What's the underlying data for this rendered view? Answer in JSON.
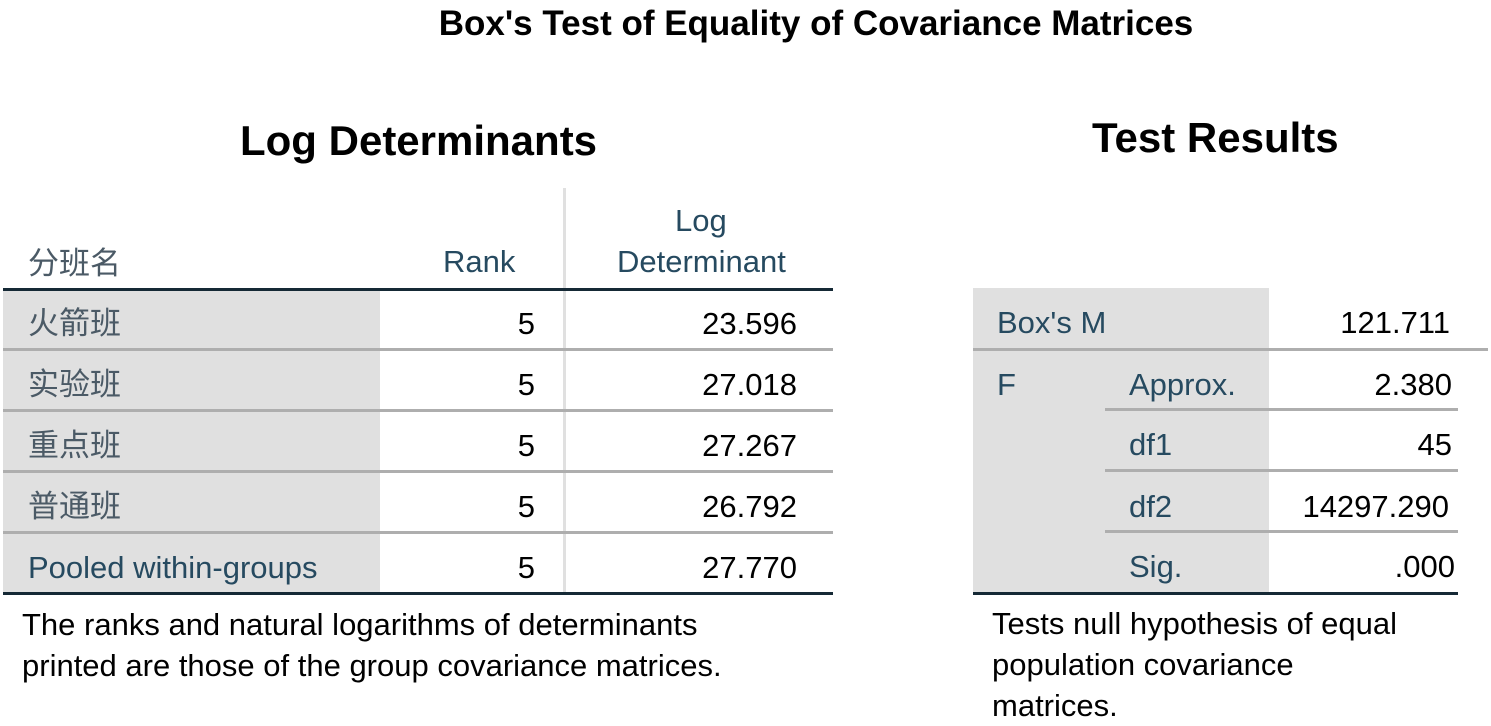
{
  "title": "Box's Test of Equality of Covariance Matrices",
  "log_determinants": {
    "title": "Log Determinants",
    "headers": {
      "group": "分班名",
      "rank": "Rank",
      "logdet_line1": "Log",
      "logdet_line2": "Determinant"
    },
    "rows": [
      {
        "group": "火箭班",
        "rank": "5",
        "logdet": "23.596"
      },
      {
        "group": "实验班",
        "rank": "5",
        "logdet": "27.018"
      },
      {
        "group": "重点班",
        "rank": "5",
        "logdet": "27.267"
      },
      {
        "group": "普通班",
        "rank": "5",
        "logdet": "26.792"
      },
      {
        "group": "Pooled within-groups",
        "rank": "5",
        "logdet": "27.770"
      }
    ],
    "footnote_line1": "The ranks and natural logarithms of determinants",
    "footnote_line2": "printed are those of the group covariance matrices."
  },
  "test_results": {
    "title": "Test Results",
    "box_m_label": "Box's M",
    "box_m_value": "121.711",
    "f_label": "F",
    "rows": [
      {
        "label": "Approx.",
        "value": "2.380"
      },
      {
        "label": "df1",
        "value": "45"
      },
      {
        "label": "df2",
        "value": "14297.290"
      },
      {
        "label": "Sig.",
        "value": ".000"
      }
    ],
    "footnote_line1": "Tests null hypothesis of equal",
    "footnote_line2": "population covariance",
    "footnote_line3": "matrices."
  }
}
